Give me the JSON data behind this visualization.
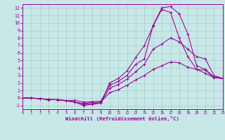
{
  "xlabel": "Windchill (Refroidissement éolien,°C)",
  "bg_color": "#c8e8e8",
  "grid_color": "#aacccc",
  "line_color": "#990099",
  "xlim": [
    0,
    23
  ],
  "ylim": [
    -1.5,
    12.5
  ],
  "xticks": [
    0,
    1,
    2,
    3,
    4,
    5,
    6,
    7,
    8,
    9,
    10,
    11,
    12,
    13,
    14,
    15,
    16,
    17,
    18,
    19,
    20,
    21,
    22,
    23
  ],
  "yticks": [
    -1,
    0,
    1,
    2,
    3,
    4,
    5,
    6,
    7,
    8,
    9,
    10,
    11,
    12
  ],
  "series": [
    [
      0.0,
      0.0,
      -0.1,
      -0.2,
      -0.25,
      -0.35,
      -0.55,
      -0.75,
      -0.6,
      -0.55,
      0.7,
      1.1,
      1.7,
      2.4,
      3.0,
      3.8,
      4.3,
      4.8,
      4.7,
      4.1,
      3.8,
      3.7,
      2.7,
      2.6
    ],
    [
      0.0,
      0.0,
      -0.1,
      -0.2,
      -0.25,
      -0.35,
      -0.5,
      -0.85,
      -0.75,
      -0.65,
      1.3,
      1.8,
      2.5,
      3.5,
      4.5,
      6.5,
      7.2,
      8.0,
      7.5,
      6.5,
      5.5,
      5.2,
      3.0,
      2.6
    ],
    [
      0.0,
      0.0,
      -0.1,
      -0.2,
      -0.25,
      -0.4,
      -0.55,
      -1.0,
      -0.85,
      -0.7,
      2.0,
      2.6,
      3.6,
      5.4,
      7.0,
      9.6,
      11.8,
      11.4,
      8.0,
      5.5,
      3.8,
      3.3,
      2.7,
      2.6
    ],
    [
      0.0,
      -0.05,
      -0.1,
      -0.25,
      -0.2,
      -0.35,
      -0.3,
      -0.55,
      -0.5,
      -0.45,
      1.7,
      2.2,
      3.0,
      4.5,
      5.2,
      9.7,
      12.0,
      12.2,
      11.2,
      8.5,
      4.3,
      3.8,
      2.8,
      2.6
    ]
  ]
}
